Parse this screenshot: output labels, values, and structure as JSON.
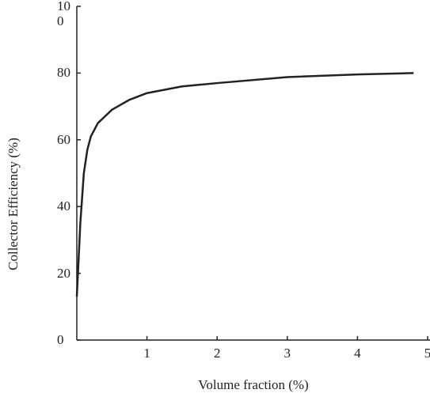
{
  "chart_data": {
    "type": "line",
    "xlabel": "Volume fraction (%)",
    "ylabel": "Collector Efficiency (%)",
    "x": [
      0,
      0.05,
      0.1,
      0.15,
      0.2,
      0.3,
      0.5,
      0.75,
      1,
      1.5,
      2,
      3,
      4,
      4.8
    ],
    "series": [
      {
        "name": "Collector efficiency",
        "color": "#222222",
        "values": [
          13,
          35,
          50,
          57,
          61,
          65,
          69,
          72,
          74,
          76,
          77,
          78.8,
          79.6,
          80
        ]
      }
    ],
    "xlim": [
      0,
      5
    ],
    "xticks": [
      0,
      1,
      2,
      3,
      4,
      5
    ],
    "ylim": [
      0,
      100
    ],
    "yticks": [
      0,
      20,
      40,
      60,
      80,
      100
    ],
    "grid": false,
    "legend": false
  }
}
